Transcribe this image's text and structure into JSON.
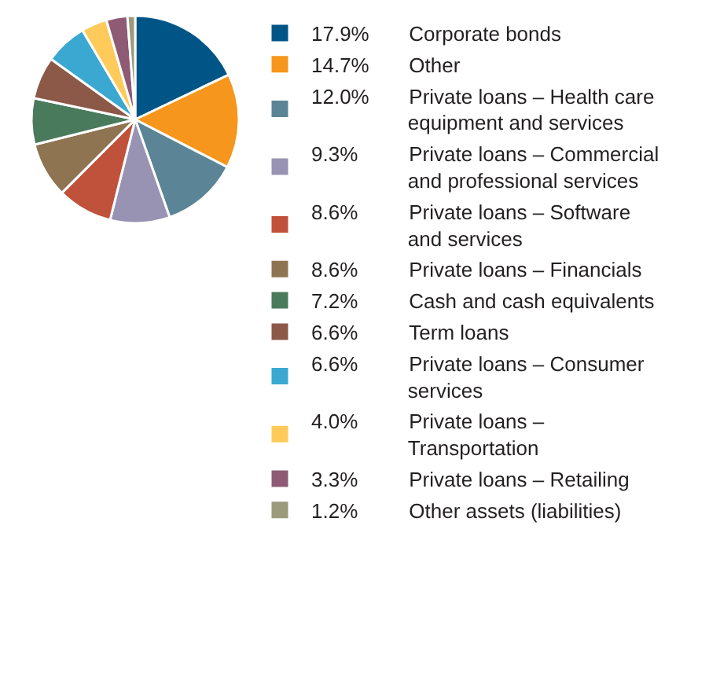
{
  "chart_data": {
    "type": "pie",
    "categories": [
      "Corporate bonds",
      "Other",
      "Private loans – Health care equipment and services",
      "Private loans – Commercial and professional services",
      "Private loans – Software and services",
      "Private loans – Financials",
      "Cash and cash equivalents",
      "Term loans",
      "Private loans – Consumer services",
      "Private loans – Transportation",
      "Private loans – Retailing",
      "Other assets (liabilities)"
    ],
    "values": [
      17.9,
      14.7,
      12.0,
      9.3,
      8.6,
      8.6,
      7.2,
      6.6,
      6.6,
      4.0,
      3.3,
      1.2
    ],
    "value_labels": [
      "17.9%",
      "14.7%",
      "12.0%",
      "9.3%",
      "8.6%",
      "8.6%",
      "7.2%",
      "6.6%",
      "6.6%",
      "4.0%",
      "3.3%",
      "1.2%"
    ],
    "colors": [
      "#005587",
      "#f7961d",
      "#5b8597",
      "#9893b3",
      "#c0513b",
      "#8e7451",
      "#4a7a5c",
      "#8c5847",
      "#3aa8d0",
      "#fecb5a",
      "#8e5a74",
      "#9b9a7c"
    ],
    "legend": "right"
  }
}
